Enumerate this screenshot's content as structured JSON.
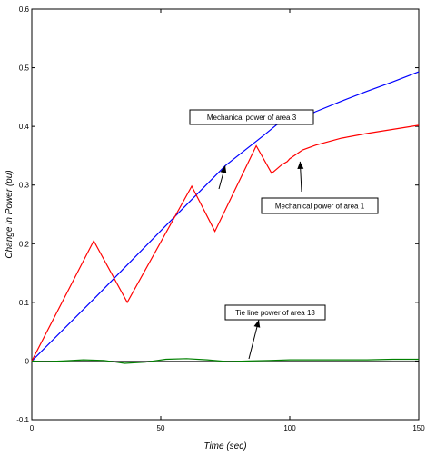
{
  "chart_data": {
    "type": "line",
    "title": "",
    "xlabel": "Time (sec)",
    "ylabel": "Change in Power (pu)",
    "xlim": [
      0,
      150
    ],
    "ylim": [
      -0.1,
      0.6
    ],
    "xticks": [
      0,
      50,
      100,
      150
    ],
    "yticks": [
      -0.1,
      0,
      0.1,
      0.2,
      0.3,
      0.4,
      0.5,
      0.6
    ],
    "grid": false,
    "series": [
      {
        "color": "#0000ff",
        "x": [
          0,
          25,
          50,
          75,
          90,
          95,
          97,
          100,
          103,
          110,
          120,
          130,
          140,
          150
        ],
        "y": [
          0,
          0.11,
          0.222,
          0.333,
          0.385,
          0.403,
          0.405,
          0.406,
          0.41,
          0.425,
          0.443,
          0.46,
          0.476,
          0.493
        ]
      },
      {
        "color": "#ff0000",
        "x": [
          0,
          24,
          37,
          62,
          71,
          87,
          93,
          97,
          99,
          100,
          105,
          110,
          120,
          130,
          140,
          150
        ],
        "y": [
          0,
          0.205,
          0.1,
          0.298,
          0.221,
          0.367,
          0.32,
          0.335,
          0.34,
          0.345,
          0.36,
          0.368,
          0.38,
          0.388,
          0.395,
          0.402
        ]
      },
      {
        "color": "#008000",
        "x": [
          0,
          5,
          12,
          20,
          28,
          36,
          44,
          52,
          60,
          68,
          76,
          84,
          92,
          100,
          110,
          120,
          130,
          140,
          150
        ],
        "y": [
          0,
          -0.001,
          0,
          0.002,
          0.001,
          -0.004,
          -0.002,
          0.003,
          0.004,
          0.002,
          -0.001,
          0,
          0.001,
          0.002,
          0.002,
          0.002,
          0.002,
          0.003,
          0.003
        ]
      }
    ],
    "annotations": [
      {
        "text": "Mechanical power of area 3",
        "target": [
          75,
          0.333
        ]
      },
      {
        "text": "Mechanical power of area 1",
        "target": [
          104,
          0.34
        ]
      },
      {
        "text": "Tie line power of area 13",
        "target": [
          88,
          0.07
        ]
      }
    ]
  }
}
